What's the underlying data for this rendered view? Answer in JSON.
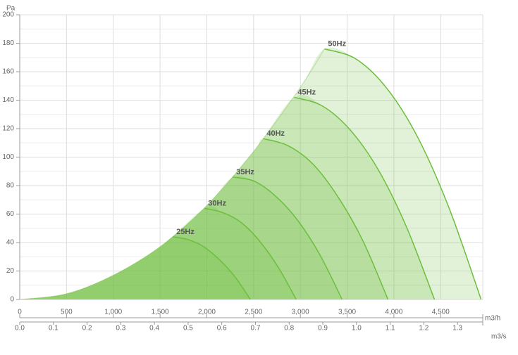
{
  "chart_data": {
    "type": "line",
    "y_label": "Pa",
    "x_label": "m3/h",
    "x2_label": "m3/s",
    "xlim": [
      0,
      4950
    ],
    "ylim": [
      0,
      200
    ],
    "x2lim": [
      0,
      1.375
    ],
    "xticks": [
      0,
      500,
      {
        "value": 1000,
        "label": "1,000"
      },
      {
        "value": 1500,
        "label": "1,500"
      },
      {
        "value": 2000,
        "label": "2,000"
      },
      {
        "value": 2500,
        "label": "2,500"
      },
      {
        "value": 3000,
        "label": "3,000"
      },
      {
        "value": 3500,
        "label": "3,500"
      },
      {
        "value": 4000,
        "label": "4,000"
      },
      {
        "value": 4500,
        "label": "4,500"
      }
    ],
    "yticks": [
      0,
      20,
      40,
      60,
      80,
      100,
      120,
      140,
      160,
      180,
      200
    ],
    "x2ticks": [
      {
        "value": 0,
        "label": "0.0"
      },
      0.1,
      0.2,
      0.3,
      0.4,
      0.5,
      0.6,
      0.7,
      0.8,
      0.9,
      {
        "value": 1,
        "label": "1.0"
      },
      1.1,
      1.2,
      1.3
    ],
    "grid": true,
    "color": "#6cbf3c",
    "boundary": {
      "x": [
        0,
        500,
        1000,
        1500,
        2000,
        2500,
        3000,
        3258
      ],
      "values": [
        0,
        4,
        17,
        37,
        66,
        104,
        149,
        176
      ]
    },
    "series": [
      {
        "name": "50Hz",
        "x": [
          3258,
          3593,
          3928,
          4262,
          4597,
          4932
        ],
        "values": [
          176,
          169,
          148,
          113,
          63,
          0
        ]
      },
      {
        "name": "45Hz",
        "x": [
          2934,
          3234,
          3534,
          3834,
          4134,
          4434
        ],
        "values": [
          142,
          136,
          119,
          91,
          51,
          0
        ]
      },
      {
        "name": "40Hz",
        "x": [
          2602,
          2869,
          3136,
          3403,
          3670,
          3937
        ],
        "values": [
          113,
          108,
          95,
          72,
          41,
          0
        ]
      },
      {
        "name": "35Hz",
        "x": [
          2277,
          2511,
          2745,
          2978,
          3212,
          3446
        ],
        "values": [
          86,
          83,
          72,
          55,
          31,
          0
        ]
      },
      {
        "name": "30Hz",
        "x": [
          1976,
          2172,
          2368,
          2564,
          2760,
          2956
        ],
        "values": [
          64,
          61,
          54,
          41,
          23,
          0
        ]
      },
      {
        "name": "25Hz",
        "x": [
          1636,
          1802,
          1968,
          2134,
          2300,
          2466
        ],
        "values": [
          44,
          42,
          37,
          28,
          16,
          0
        ]
      }
    ]
  }
}
